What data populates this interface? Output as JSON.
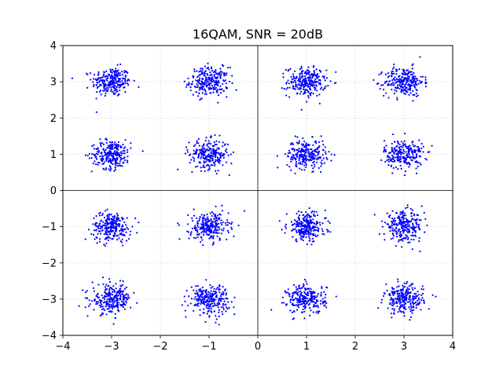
{
  "chart_data": {
    "type": "scatter",
    "title": "16QAM, SNR = 20dB",
    "xlabel": "",
    "ylabel": "",
    "xlim": [
      -4,
      4
    ],
    "ylim": [
      -4,
      4
    ],
    "xticks": [
      -4,
      -3,
      -2,
      -1,
      0,
      1,
      2,
      3,
      4
    ],
    "yticks": [
      -4,
      -3,
      -2,
      -1,
      0,
      1,
      2,
      3,
      4
    ],
    "xtick_labels": [
      "−4",
      "−3",
      "−2",
      "−1",
      "0",
      "1",
      "2",
      "3",
      "4"
    ],
    "ytick_labels": [
      "−4",
      "−3",
      "−2",
      "−1",
      "0",
      "1",
      "2",
      "3",
      "4"
    ],
    "grid": true,
    "axes_lines": {
      "x": 0,
      "y": 0
    },
    "point_color": "#0000ff",
    "points_per_symbol": 250,
    "noise_sigma": 0.2,
    "series": [
      {
        "constellation": [
          [
            -3,
            3
          ],
          [
            -1,
            3
          ],
          [
            1,
            3
          ],
          [
            3,
            3
          ],
          [
            -3,
            1
          ],
          [
            -1,
            1
          ],
          [
            1,
            1
          ],
          [
            3,
            1
          ],
          [
            -3,
            -1
          ],
          [
            -1,
            -1
          ],
          [
            1,
            -1
          ],
          [
            3,
            -1
          ],
          [
            -3,
            -3
          ],
          [
            -1,
            -3
          ],
          [
            1,
            -3
          ],
          [
            3,
            -3
          ]
        ]
      }
    ]
  }
}
